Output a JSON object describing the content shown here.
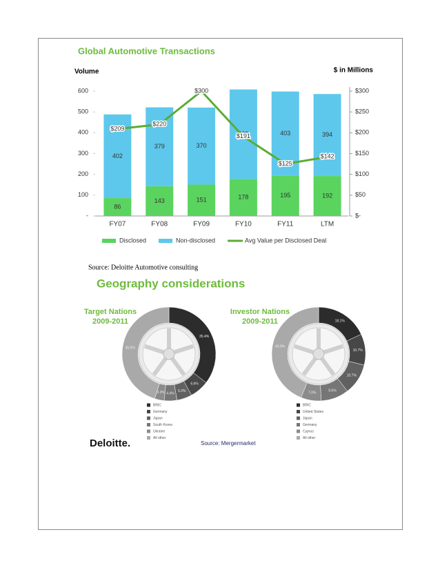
{
  "chart_data": [
    {
      "type": "bar",
      "stacked": true,
      "title": "Global Automotive Transactions",
      "y_label": "Volume",
      "y2_label": "$ in Millions",
      "categories": [
        "FY07",
        "FY08",
        "FY09",
        "FY10",
        "FY11",
        "LTM"
      ],
      "series": [
        {
          "name": "Disclosed",
          "color": "#5ad45e",
          "values": [
            86,
            143,
            151,
            178,
            195,
            192
          ]
        },
        {
          "name": "Non-disclosed",
          "color": "#5ec8ec",
          "values": [
            402,
            379,
            370,
            430,
            403,
            394
          ]
        },
        {
          "name": "Avg Value per Disclosed Deal",
          "type": "line",
          "axis": "y2",
          "color": "#5aad34",
          "values": [
            209,
            220,
            300,
            191,
            125,
            142
          ],
          "value_labels": [
            "$209",
            "$220",
            "$300",
            "$191",
            "$125",
            "$142"
          ]
        }
      ],
      "ylim": [
        0,
        620
      ],
      "yticks": [
        {
          "value": 0,
          "label": "-"
        },
        100,
        200,
        300,
        400,
        500,
        600
      ],
      "y2lim": [
        0,
        310
      ],
      "y2ticks": [
        {
          "value": 0,
          "label": "$-"
        },
        {
          "value": 50,
          "label": "$50"
        },
        {
          "value": 100,
          "label": "$100"
        },
        {
          "value": 150,
          "label": "$150"
        },
        {
          "value": 200,
          "label": "$200"
        },
        {
          "value": 250,
          "label": "$250"
        },
        {
          "value": 300,
          "label": "$300"
        }
      ],
      "grid": false,
      "legend": "bottom"
    },
    {
      "type": "pie",
      "donut": true,
      "title": "Target Nations",
      "subtitle": "2009-2011",
      "categories": [
        "BRIC",
        "Germany",
        "Japan",
        "South Korea",
        "Ukraine",
        "All other"
      ],
      "values": [
        35.4,
        6.6,
        5.2,
        4.4,
        3.3,
        45.0
      ],
      "value_labels": [
        "35.4%",
        "6.6%",
        "5.2%",
        "4.4%",
        "3.3%",
        "45.0%"
      ],
      "colors": [
        "#2c2c2c",
        "#474747",
        "#616161",
        "#767676",
        "#8b8b8b",
        "#a9a9a9"
      ]
    },
    {
      "type": "pie",
      "donut": true,
      "title": "Investor Nations",
      "subtitle": "2009-2011",
      "categories": [
        "BRIC",
        "United States",
        "Japan",
        "Germany",
        "Cyprus",
        "All other"
      ],
      "values": [
        18.1,
        10.7,
        10.7,
        9.6,
        7.0,
        43.9
      ],
      "value_labels": [
        "18.1%",
        "10.7%",
        "10.7%",
        "9.6%",
        "7.0%",
        "43.9%"
      ],
      "colors": [
        "#2c2c2c",
        "#474747",
        "#616161",
        "#767676",
        "#8b8b8b",
        "#a9a9a9"
      ]
    }
  ],
  "source_note": "Source: Deloitte Automotive consulting",
  "section_title": "Geography considerations",
  "logo": "Deloitte.",
  "source": "Source: Mergermarket"
}
